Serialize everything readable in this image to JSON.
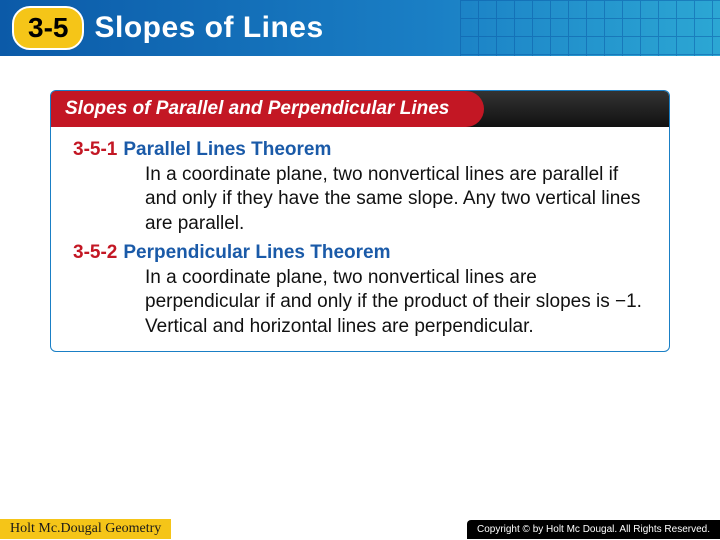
{
  "header": {
    "section_number": "3-5",
    "title": "Slopes of Lines",
    "badge_bg": "#f5c518",
    "bar_gradient_from": "#0b5aa8",
    "bar_gradient_to": "#2ca7d4"
  },
  "card": {
    "title": "Slopes of Parallel and Perpendicular Lines",
    "header_red": "#c31724",
    "border_color": "#1a7fc5",
    "theorems": [
      {
        "number": "3-5-1",
        "name": "Parallel Lines Theorem",
        "body": "In a coordinate plane, two nonvertical lines are parallel if and only if they have the same slope. Any two vertical lines are parallel."
      },
      {
        "number": "3-5-2",
        "name": "Perpendicular Lines Theorem",
        "body": "In a coordinate plane, two nonvertical lines are perpendicular if and only if the product of their slopes is −1. Vertical and horizontal lines are perpendicular."
      }
    ]
  },
  "footer": {
    "left": "Holt Mc.Dougal Geometry",
    "right": "Copyright © by Holt Mc Dougal. All Rights Reserved."
  }
}
